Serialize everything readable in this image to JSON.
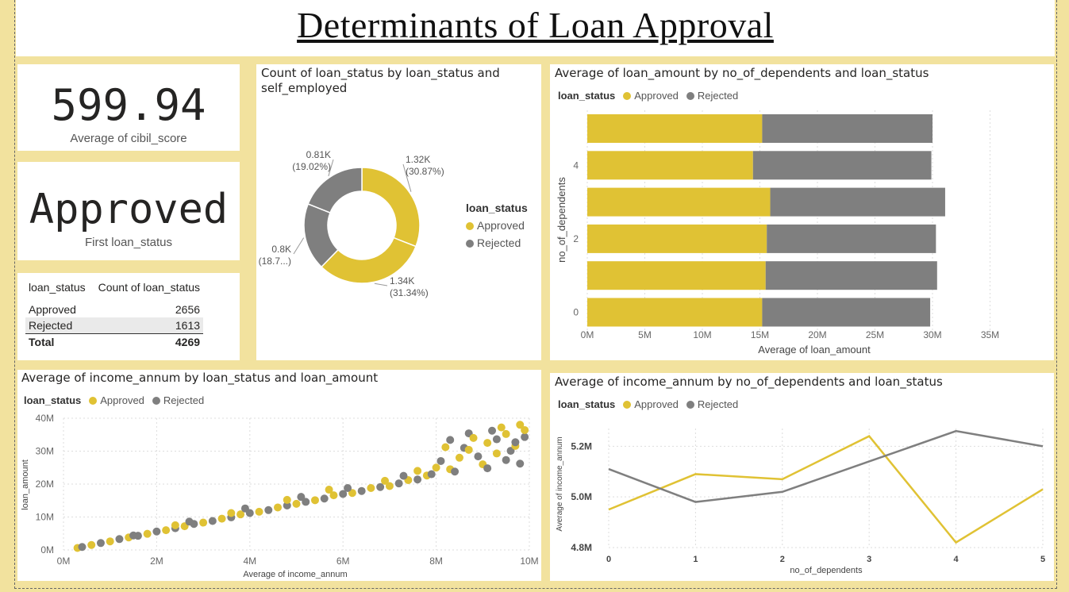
{
  "title": "Determinants of Loan Approval",
  "colors": {
    "approved": "#e0c234",
    "rejected": "#7f7f7f"
  },
  "cards": {
    "cibil": {
      "value": "599.94",
      "label": "Average of  cibil_score"
    },
    "status": {
      "value": "Approved",
      "label": "First  loan_status"
    }
  },
  "matrix": {
    "headers": [
      "loan_status",
      "Count of loan_status"
    ],
    "rows": [
      {
        "label": "Approved",
        "value": "2656"
      },
      {
        "label": "Rejected",
        "value": "1613"
      }
    ],
    "total": {
      "label": "Total",
      "value": "4269"
    }
  },
  "chart_data": [
    {
      "id": "donut",
      "type": "pie",
      "title": "Count of loan_status by loan_status and self_employed",
      "legend_title": "loan_status",
      "legend": [
        "Approved",
        "Rejected"
      ],
      "slices": [
        {
          "series": "Approved",
          "value": 1.32,
          "label": "1.32K",
          "pct": "(30.87%)"
        },
        {
          "series": "Approved",
          "value": 1.34,
          "label": "1.34K",
          "pct": "(31.34%)"
        },
        {
          "series": "Rejected",
          "value": 0.8,
          "label": "0.8K",
          "pct": "(18.7...)"
        },
        {
          "series": "Rejected",
          "value": 0.81,
          "label": "0.81K",
          "pct": "(19.02%)"
        }
      ]
    },
    {
      "id": "hbar",
      "type": "bar",
      "title": "Average of loan_amount by no_of_dependents and loan_status",
      "legend_title": "loan_status",
      "xlabel": "Average of loan_amount",
      "ylabel": "no_of_dependents",
      "categories": [
        "5",
        "4",
        "3",
        "2",
        "1",
        "0"
      ],
      "ytick_labels": [
        "",
        "4",
        "",
        "2",
        "",
        "0"
      ],
      "xticks": [
        "0M",
        "5M",
        "10M",
        "15M",
        "20M",
        "25M",
        "30M",
        "35M"
      ],
      "xlim": [
        0,
        35
      ],
      "series": [
        {
          "name": "Approved",
          "values": [
            15.2,
            14.4,
            15.9,
            15.6,
            15.5,
            15.2
          ]
        },
        {
          "name": "Rejected",
          "values": [
            14.8,
            15.5,
            15.2,
            14.7,
            14.9,
            14.6
          ]
        }
      ]
    },
    {
      "id": "scatter",
      "type": "scatter",
      "title": "Average of income_annum by loan_status and loan_amount",
      "legend_title": "loan_status",
      "xlabel": "Average of income_annum",
      "ylabel": "loan_amount",
      "xticks": [
        "0M",
        "2M",
        "4M",
        "6M",
        "8M",
        "10M"
      ],
      "yticks": [
        "0M",
        "10M",
        "20M",
        "30M",
        "40M"
      ],
      "xlim": [
        0,
        10
      ],
      "ylim": [
        0,
        40
      ],
      "series": [
        {
          "name": "Approved",
          "points": [
            [
              0.3,
              0.6
            ],
            [
              0.6,
              1.5
            ],
            [
              1,
              2.6
            ],
            [
              1.4,
              3.8
            ],
            [
              1.8,
              4.9
            ],
            [
              2.2,
              6
            ],
            [
              2.6,
              7.2
            ],
            [
              3,
              8.3
            ],
            [
              3.4,
              9.5
            ],
            [
              3.8,
              10.8
            ],
            [
              4.2,
              11.6
            ],
            [
              4.6,
              12.9
            ],
            [
              5,
              14
            ],
            [
              5.4,
              15.1
            ],
            [
              5.8,
              16.6
            ],
            [
              6.2,
              17.3
            ],
            [
              6.6,
              18.8
            ],
            [
              7,
              19.4
            ],
            [
              7.4,
              21.2
            ],
            [
              7.8,
              22.6
            ],
            [
              8,
              25
            ],
            [
              8.3,
              24.5
            ],
            [
              8.5,
              28
            ],
            [
              8.7,
              30.4
            ],
            [
              9,
              26
            ],
            [
              9.1,
              32.5
            ],
            [
              9.3,
              29.3
            ],
            [
              9.5,
              35.2
            ],
            [
              9.7,
              31.6
            ],
            [
              9.8,
              38
            ],
            [
              9.9,
              36.4
            ],
            [
              8.2,
              31.2
            ],
            [
              8.8,
              34
            ],
            [
              9.4,
              37.2
            ],
            [
              7.6,
              24
            ],
            [
              6.9,
              21
            ],
            [
              5.7,
              18.3
            ],
            [
              4.8,
              15.2
            ],
            [
              3.6,
              11.2
            ],
            [
              2.4,
              7.5
            ]
          ]
        },
        {
          "name": "Rejected",
          "points": [
            [
              0.4,
              0.9
            ],
            [
              0.8,
              2.1
            ],
            [
              1.2,
              3.3
            ],
            [
              1.6,
              4.3
            ],
            [
              2,
              5.6
            ],
            [
              2.4,
              6.6
            ],
            [
              2.8,
              7.9
            ],
            [
              3.2,
              8.8
            ],
            [
              3.6,
              9.9
            ],
            [
              4,
              11.2
            ],
            [
              4.4,
              12.1
            ],
            [
              4.8,
              13.5
            ],
            [
              5.2,
              14.6
            ],
            [
              5.6,
              15.6
            ],
            [
              6,
              17
            ],
            [
              6.4,
              17.9
            ],
            [
              6.8,
              19.1
            ],
            [
              7.2,
              20.2
            ],
            [
              7.6,
              21.4
            ],
            [
              7.9,
              23
            ],
            [
              8.1,
              27
            ],
            [
              8.4,
              23.8
            ],
            [
              8.6,
              31
            ],
            [
              8.9,
              28.4
            ],
            [
              9.1,
              24.8
            ],
            [
              9.3,
              33.6
            ],
            [
              9.5,
              27.3
            ],
            [
              9.6,
              30.1
            ],
            [
              9.8,
              26.2
            ],
            [
              9.9,
              34.3
            ],
            [
              8.3,
              33.4
            ],
            [
              8.7,
              35.4
            ],
            [
              9.2,
              36.2
            ],
            [
              7.3,
              22.5
            ],
            [
              6.1,
              18.8
            ],
            [
              5.1,
              16.1
            ],
            [
              3.9,
              12.6
            ],
            [
              2.7,
              8.6
            ],
            [
              1.5,
              4.4
            ],
            [
              9.7,
              32.7
            ]
          ]
        }
      ]
    },
    {
      "id": "line",
      "type": "line",
      "title": "Average of income_annum by no_of_dependents and loan_status",
      "legend_title": "loan_status",
      "xlabel": "no_of_dependents",
      "ylabel": "Average of income_annum",
      "x": [
        0,
        1,
        2,
        3,
        4,
        5
      ],
      "yticks": [
        "4.8M",
        "5.0M",
        "5.2M"
      ],
      "ylim": [
        4.8,
        5.27
      ],
      "series": [
        {
          "name": "Approved",
          "values": [
            4.95,
            5.09,
            5.07,
            5.24,
            4.82,
            5.03
          ]
        },
        {
          "name": "Rejected",
          "values": [
            5.11,
            4.98,
            5.02,
            5.14,
            5.26,
            5.2
          ]
        }
      ]
    }
  ]
}
